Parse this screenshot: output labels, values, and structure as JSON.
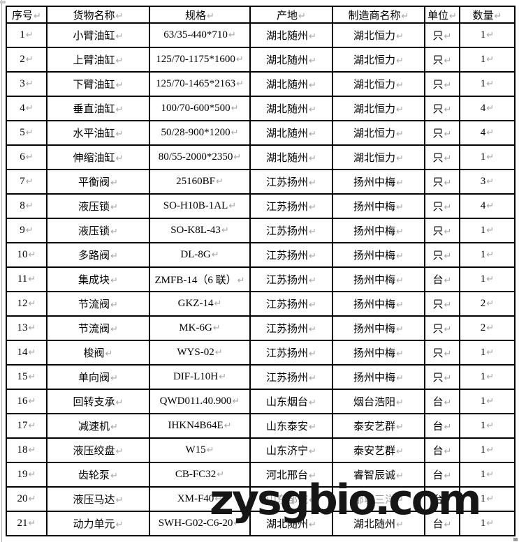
{
  "table": {
    "headers": [
      {
        "key": "seq",
        "label": "序号"
      },
      {
        "key": "name",
        "label": "货物名称"
      },
      {
        "key": "spec",
        "label": "规格"
      },
      {
        "key": "origin",
        "label": "产地"
      },
      {
        "key": "manufacturer",
        "label": "制造商名称"
      },
      {
        "key": "unit",
        "label": "单位"
      },
      {
        "key": "qty",
        "label": "数量"
      }
    ],
    "rows": [
      {
        "seq": "1",
        "name": "小臂油缸",
        "spec": "63/35-440*710",
        "origin": "湖北随州",
        "manufacturer": "湖北恒力",
        "unit": "只",
        "qty": "1",
        "muted": []
      },
      {
        "seq": "2",
        "name": "上臂油缸",
        "spec": "125/70-1175*1600",
        "origin": "湖北随州",
        "manufacturer": "湖北恒力",
        "unit": "只",
        "qty": "1",
        "muted": []
      },
      {
        "seq": "3",
        "name": "下臂油缸",
        "spec": "125/70-1465*2163",
        "origin": "湖北随州",
        "manufacturer": "湖北恒力",
        "unit": "只",
        "qty": "1",
        "muted": []
      },
      {
        "seq": "4",
        "name": "垂直油缸",
        "spec": "100/70-600*500",
        "origin": "湖北随州",
        "manufacturer": "湖北恒力",
        "unit": "只",
        "qty": "4",
        "muted": []
      },
      {
        "seq": "5",
        "name": "水平油缸",
        "spec": "50/28-900*1200",
        "origin": "湖北随州",
        "manufacturer": "湖北恒力",
        "unit": "只",
        "qty": "4",
        "muted": []
      },
      {
        "seq": "6",
        "name": "伸缩油缸",
        "spec": "80/55-2000*2350",
        "origin": "湖北随州",
        "manufacturer": "湖北恒力",
        "unit": "只",
        "qty": "1",
        "muted": []
      },
      {
        "seq": "7",
        "name": "平衡阀",
        "spec": "25160BF",
        "origin": "江苏扬州",
        "manufacturer": "扬州中梅",
        "unit": "只",
        "qty": "3",
        "muted": []
      },
      {
        "seq": "8",
        "name": "液压锁",
        "spec": "SO-H10B-1AL",
        "origin": "江苏扬州",
        "manufacturer": "扬州中梅",
        "unit": "只",
        "qty": "4",
        "muted": []
      },
      {
        "seq": "9",
        "name": "液压锁",
        "spec": "SO-K8L-43",
        "origin": "江苏扬州",
        "manufacturer": "扬州中梅",
        "unit": "只",
        "qty": "1",
        "muted": []
      },
      {
        "seq": "10",
        "name": "多路阀",
        "spec": "DL-8G",
        "origin": "江苏扬州",
        "manufacturer": "扬州中梅",
        "unit": "只",
        "qty": "1",
        "muted": []
      },
      {
        "seq": "11",
        "name": "集成块",
        "spec": "ZMFB-14（6 联）",
        "origin": "江苏扬州",
        "manufacturer": "扬州中梅",
        "unit": "台",
        "qty": "1",
        "muted": []
      },
      {
        "seq": "12",
        "name": "节流阀",
        "spec": "GKZ-14",
        "origin": "江苏扬州",
        "manufacturer": "扬州中梅",
        "unit": "只",
        "qty": "2",
        "muted": []
      },
      {
        "seq": "13",
        "name": "节流阀",
        "spec": "MK-6G",
        "origin": "江苏扬州",
        "manufacturer": "扬州中梅",
        "unit": "只",
        "qty": "2",
        "muted": []
      },
      {
        "seq": "14",
        "name": "梭阀",
        "spec": "WYS-02",
        "origin": "江苏扬州",
        "manufacturer": "扬州中梅",
        "unit": "只",
        "qty": "1",
        "muted": []
      },
      {
        "seq": "15",
        "name": "单向阀",
        "spec": "DIF-L10H",
        "origin": "江苏扬州",
        "manufacturer": "扬州中梅",
        "unit": "只",
        "qty": "1",
        "muted": []
      },
      {
        "seq": "16",
        "name": "回转支承",
        "spec": "QWD011.40.900",
        "origin": "山东烟台",
        "manufacturer": "烟台浩阳",
        "unit": "台",
        "qty": "1",
        "muted": []
      },
      {
        "seq": "17",
        "name": "减速机",
        "spec": "IHKN4B64E",
        "origin": "山东泰安",
        "manufacturer": "泰安艺群",
        "unit": "台",
        "qty": "1",
        "muted": []
      },
      {
        "seq": "18",
        "name": "液压绞盘",
        "spec": "W15",
        "origin": "山东济宁",
        "manufacturer": "泰安艺群",
        "unit": "台",
        "qty": "1",
        "muted": []
      },
      {
        "seq": "19",
        "name": "齿轮泵",
        "spec": "CB-FC32",
        "origin": "河北邢台",
        "manufacturer": "睿智辰诚",
        "unit": "台",
        "qty": "1",
        "muted": []
      },
      {
        "seq": "20",
        "name": "液压马达",
        "spec": "XM-F40",
        "origin": "山东邹城",
        "manufacturer": "邹城三洋",
        "unit": "台",
        "qty": "1",
        "muted": [
          "origin",
          "manufacturer"
        ]
      },
      {
        "seq": "21",
        "name": "动力单元",
        "spec": "SWH-G02-C6-20",
        "origin": "湖北随州",
        "manufacturer": "湖北随州",
        "unit": "台",
        "qty": "1",
        "muted": []
      }
    ]
  },
  "marks": {
    "paragraph_mark": "↵"
  },
  "watermark": {
    "text": "zysgbio.com"
  },
  "colors": {
    "border": "#000000",
    "text": "#000000",
    "paragraph_mark": "#a6a6a6",
    "muted_text": "#9a9a9a",
    "watermark": "#161616"
  }
}
